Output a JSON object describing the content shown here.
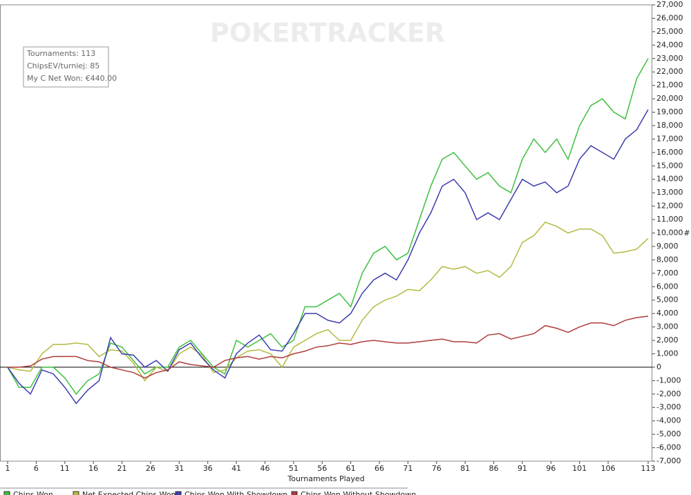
{
  "chart_data": {
    "type": "line",
    "watermark": "POKERTRACKER",
    "annotations": [
      "Tournaments: 113",
      "ChipsEV/turniej: 85",
      "My C Net Won: €440.00"
    ],
    "x_label": "Tournaments Played",
    "y_label": "#",
    "x": [
      1,
      3,
      5,
      7,
      9,
      11,
      13,
      15,
      17,
      19,
      21,
      23,
      25,
      27,
      29,
      31,
      33,
      35,
      37,
      39,
      41,
      43,
      45,
      47,
      49,
      51,
      53,
      55,
      57,
      59,
      61,
      63,
      65,
      67,
      69,
      71,
      73,
      75,
      77,
      79,
      81,
      83,
      85,
      87,
      89,
      91,
      93,
      95,
      97,
      99,
      101,
      103,
      105,
      107,
      109,
      111,
      113
    ],
    "series": [
      {
        "name": "Chips Won",
        "color": "#3cbf3c",
        "values": [
          0,
          -1500,
          -1500,
          0,
          0,
          -800,
          -2000,
          -1000,
          -500,
          1800,
          1500,
          500,
          -500,
          0,
          0,
          1500,
          2000,
          1000,
          0,
          -500,
          2000,
          1500,
          2000,
          2500,
          1500,
          2000,
          4500,
          4500,
          5000,
          5500,
          4500,
          7000,
          8500,
          9000,
          8000,
          8500,
          11000,
          13500,
          15500,
          16000,
          15000,
          14000,
          14500,
          13500,
          13000,
          15500,
          17000,
          16000,
          17000,
          15500,
          18000,
          19500,
          20000,
          19000,
          18500,
          21500,
          23000
        ]
      },
      {
        "name": "Net Expected Chips Won",
        "color": "#b5b83f",
        "values": [
          0,
          -200,
          -300,
          1000,
          1700,
          1700,
          1800,
          1700,
          800,
          1300,
          1200,
          300,
          -1000,
          0,
          -300,
          1000,
          1500,
          900,
          -400,
          -200,
          700,
          1200,
          1300,
          1000,
          0,
          1500,
          2000,
          2500,
          2800,
          2000,
          2000,
          3500,
          4500,
          5000,
          5300,
          5800,
          5700,
          6500,
          7500,
          7300,
          7500,
          7000,
          7200,
          6700,
          7500,
          9300,
          9800,
          10800,
          10500,
          10000,
          10300,
          10300,
          9800,
          8500,
          8600,
          8800,
          9600
        ]
      },
      {
        "name": "Chips Won With Showdown",
        "color": "#3b3bb0",
        "values": [
          0,
          -1200,
          -2000,
          -200,
          -500,
          -1500,
          -2700,
          -1700,
          -1000,
          2200,
          1000,
          900,
          0,
          500,
          -300,
          1300,
          1800,
          700,
          -200,
          -800,
          1000,
          1800,
          2400,
          1300,
          1200,
          2500,
          4000,
          4000,
          3500,
          3300,
          4000,
          5500,
          6500,
          7000,
          6500,
          8000,
          10000,
          11500,
          13500,
          14000,
          13000,
          11000,
          11500,
          11000,
          12500,
          14000,
          13500,
          13800,
          13000,
          13500,
          15500,
          16500,
          16000,
          15500,
          17000,
          17700,
          19200
        ]
      },
      {
        "name": "Chips Won Without Showdown",
        "color": "#b03a3a",
        "values": [
          0,
          0,
          100,
          600,
          800,
          800,
          800,
          500,
          400,
          0,
          -200,
          -400,
          -800,
          -400,
          -200,
          400,
          200,
          100,
          0,
          500,
          700,
          800,
          600,
          800,
          700,
          1000,
          1200,
          1500,
          1600,
          1800,
          1700,
          1900,
          2000,
          1900,
          1800,
          1800,
          1900,
          2000,
          2100,
          1900,
          1900,
          1800,
          2400,
          2500,
          2100,
          2300,
          2500,
          3100,
          2900,
          2600,
          3000,
          3300,
          3300,
          3100,
          3500,
          3700,
          3800
        ]
      }
    ],
    "xlim": [
      1,
      113
    ],
    "xticks": [
      1,
      6,
      11,
      16,
      21,
      26,
      31,
      36,
      41,
      46,
      51,
      56,
      61,
      66,
      71,
      76,
      81,
      86,
      91,
      96,
      101,
      106,
      113
    ],
    "ylim": [
      -7000,
      27000
    ],
    "yticks": [
      {
        "value": -7000,
        "label": "-7,000"
      },
      {
        "value": -6000,
        "label": "-6,000"
      },
      {
        "value": -5000,
        "label": "-5,000"
      },
      {
        "value": -4000,
        "label": "-4,000"
      },
      {
        "value": -3000,
        "label": "-3,000"
      },
      {
        "value": -2000,
        "label": "-2,000"
      },
      {
        "value": -1000,
        "label": "-1,000"
      },
      0,
      {
        "value": 1000,
        "label": "1,000"
      },
      {
        "value": 2000,
        "label": "2,000"
      },
      {
        "value": 3000,
        "label": "3,000"
      },
      {
        "value": 4000,
        "label": "4,000"
      },
      {
        "value": 5000,
        "label": "5,000"
      },
      {
        "value": 6000,
        "label": "6,000"
      },
      {
        "value": 7000,
        "label": "7,000"
      },
      {
        "value": 8000,
        "label": "8,000"
      },
      {
        "value": 9000,
        "label": "9,000"
      },
      {
        "value": 10000,
        "label": "10,000"
      },
      {
        "value": 11000,
        "label": "11,000"
      },
      {
        "value": 12000,
        "label": "12,000"
      },
      {
        "value": 13000,
        "label": "13,000"
      },
      {
        "value": 14000,
        "label": "14,000"
      },
      {
        "value": 15000,
        "label": "15,000"
      },
      {
        "value": 16000,
        "label": "16,000"
      },
      {
        "value": 17000,
        "label": "17,000"
      },
      {
        "value": 18000,
        "label": "18,000"
      },
      {
        "value": 19000,
        "label": "19,000"
      },
      {
        "value": 20000,
        "label": "20,000"
      },
      {
        "value": 21000,
        "label": "21,000"
      },
      {
        "value": 22000,
        "label": "22,000"
      },
      {
        "value": 23000,
        "label": "23,000"
      },
      {
        "value": 24000,
        "label": "24,000"
      },
      {
        "value": 25000,
        "label": "25,000"
      },
      {
        "value": 26000,
        "label": "26,000"
      },
      {
        "value": 27000,
        "label": "27,000"
      }
    ],
    "grid": false
  }
}
